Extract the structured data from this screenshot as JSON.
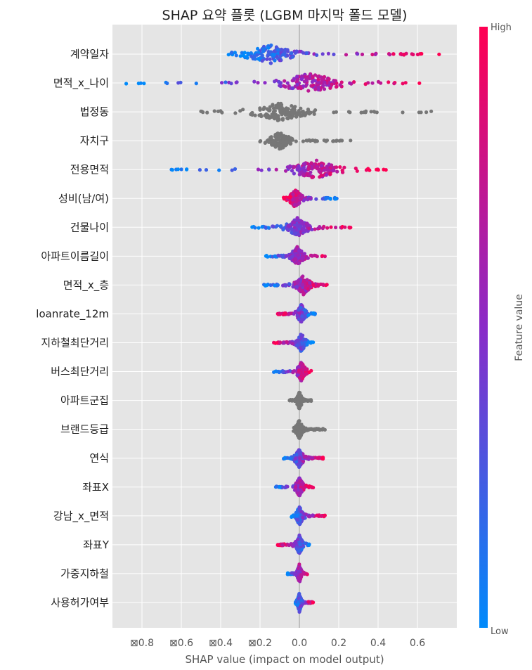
{
  "chart_data": {
    "type": "scatter",
    "title": "SHAP 요약 플롯 (LGBM 마지막 폴드 모델)",
    "xlabel": "SHAP value (impact on model output)",
    "xlim": [
      -0.95,
      0.8
    ],
    "xticks": [
      {
        "value": -0.8,
        "label": "⊠0.8"
      },
      {
        "value": -0.6,
        "label": "⊠0.6"
      },
      {
        "value": -0.4,
        "label": "⊠0.4"
      },
      {
        "value": -0.2,
        "label": "⊠0.2"
      },
      {
        "value": 0.0,
        "label": "0.0"
      },
      {
        "value": 0.2,
        "label": "0.2"
      },
      {
        "value": 0.4,
        "label": "0.4"
      },
      {
        "value": 0.6,
        "label": "0.6"
      }
    ],
    "grid": true,
    "colorbar": {
      "label": "Feature value",
      "high_label": "High",
      "low_label": "Low",
      "low_color": "#008afb",
      "mid_color": "#8a2bc8",
      "high_color": "#ff0052",
      "missing_color": "#777777"
    },
    "features": [
      {
        "name": "계약일자",
        "min": -0.36,
        "max": 0.71,
        "center": -0.15,
        "trend": 1,
        "numeric": true
      },
      {
        "name": "면적_x_나이",
        "min": -0.88,
        "max": 0.61,
        "center": 0.05,
        "trend": 1,
        "numeric": true
      },
      {
        "name": "법정동",
        "min": -0.5,
        "max": 0.67,
        "center": -0.1,
        "trend": 0,
        "numeric": false
      },
      {
        "name": "자치구",
        "min": -0.2,
        "max": 0.26,
        "center": -0.1,
        "trend": 0,
        "numeric": false
      },
      {
        "name": "전용면적",
        "min": -0.65,
        "max": 0.44,
        "center": 0.08,
        "trend": 1,
        "numeric": true
      },
      {
        "name": "성비(남/여)",
        "min": -0.08,
        "max": 0.19,
        "center": -0.02,
        "trend": -1,
        "numeric": true
      },
      {
        "name": "건물나이",
        "min": -0.24,
        "max": 0.26,
        "center": -0.01,
        "trend": 1,
        "numeric": true
      },
      {
        "name": "아파트이름길이",
        "min": -0.17,
        "max": 0.13,
        "center": -0.01,
        "trend": 1,
        "numeric": true
      },
      {
        "name": "면적_x_층",
        "min": -0.18,
        "max": 0.14,
        "center": 0.02,
        "trend": 1,
        "numeric": true
      },
      {
        "name": "loanrate_12m",
        "min": -0.11,
        "max": 0.08,
        "center": 0.01,
        "trend": -1,
        "numeric": true
      },
      {
        "name": "지하철최단거리",
        "min": -0.13,
        "max": 0.07,
        "center": 0.01,
        "trend": -1,
        "numeric": true
      },
      {
        "name": "버스최단거리",
        "min": -0.13,
        "max": 0.06,
        "center": 0.01,
        "trend": 1,
        "numeric": true
      },
      {
        "name": "아파트군집",
        "min": -0.05,
        "max": 0.06,
        "center": 0.0,
        "trend": 0,
        "numeric": false
      },
      {
        "name": "브랜드등급",
        "min": -0.03,
        "max": 0.13,
        "center": 0.0,
        "trend": 0,
        "numeric": false
      },
      {
        "name": "연식",
        "min": -0.08,
        "max": 0.12,
        "center": 0.0,
        "trend": 1,
        "numeric": true
      },
      {
        "name": "좌표X",
        "min": -0.12,
        "max": 0.07,
        "center": 0.0,
        "trend": 1,
        "numeric": true
      },
      {
        "name": "강남_x_면적",
        "min": -0.04,
        "max": 0.13,
        "center": 0.0,
        "trend": 1,
        "numeric": true
      },
      {
        "name": "좌표Y",
        "min": -0.11,
        "max": 0.05,
        "center": 0.0,
        "trend": -1,
        "numeric": true
      },
      {
        "name": "가중지하철",
        "min": -0.06,
        "max": 0.04,
        "center": 0.0,
        "trend": 1,
        "numeric": true
      },
      {
        "name": "사용허가여부",
        "min": -0.02,
        "max": 0.07,
        "center": 0.0,
        "trend": 1,
        "numeric": true
      }
    ]
  }
}
